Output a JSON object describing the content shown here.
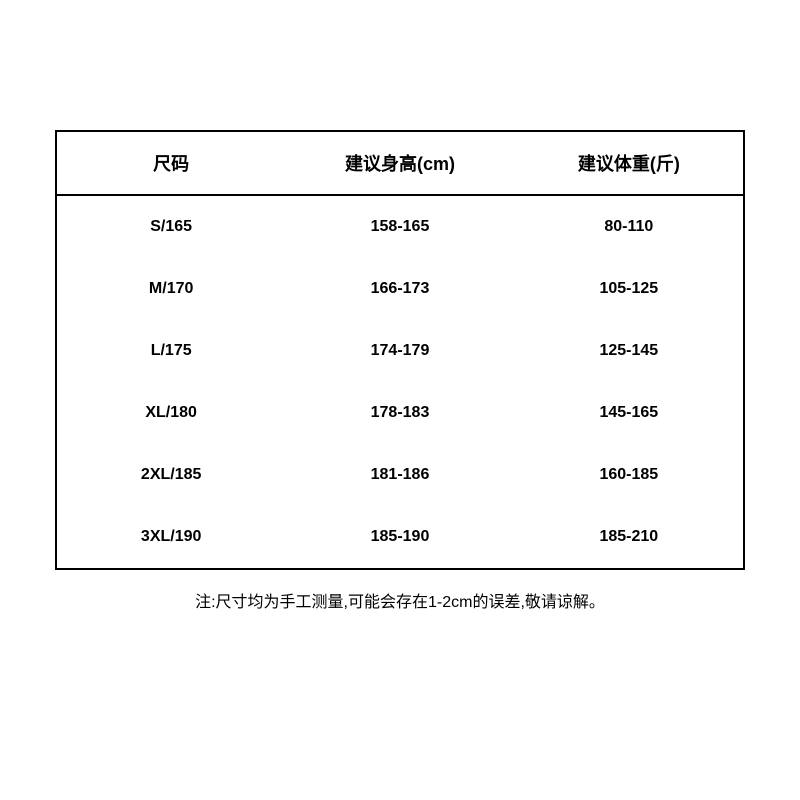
{
  "table": {
    "type": "table",
    "border_color": "#000000",
    "border_width": 2,
    "background_color": "#ffffff",
    "header_fontsize": 18,
    "cell_fontsize": 16,
    "font_weight": "bold",
    "text_color": "#000000",
    "columns": [
      {
        "label": "尺码",
        "width_pct": 33.3,
        "align": "center"
      },
      {
        "label": "建议身高(cm)",
        "width_pct": 33.3,
        "align": "center"
      },
      {
        "label": "建议体重(斤)",
        "width_pct": 33.3,
        "align": "center"
      }
    ],
    "rows": [
      [
        "S/165",
        "158-165",
        "80-110"
      ],
      [
        "M/170",
        "166-173",
        "105-125"
      ],
      [
        "L/175",
        "174-179",
        "125-145"
      ],
      [
        "XL/180",
        "178-183",
        "145-165"
      ],
      [
        "2XL/185",
        "181-186",
        "160-185"
      ],
      [
        "3XL/190",
        "185-190",
        "185-210"
      ]
    ]
  },
  "footnote": "注:尺寸均为手工测量,可能会存在1-2cm的误差,敬请谅解。"
}
